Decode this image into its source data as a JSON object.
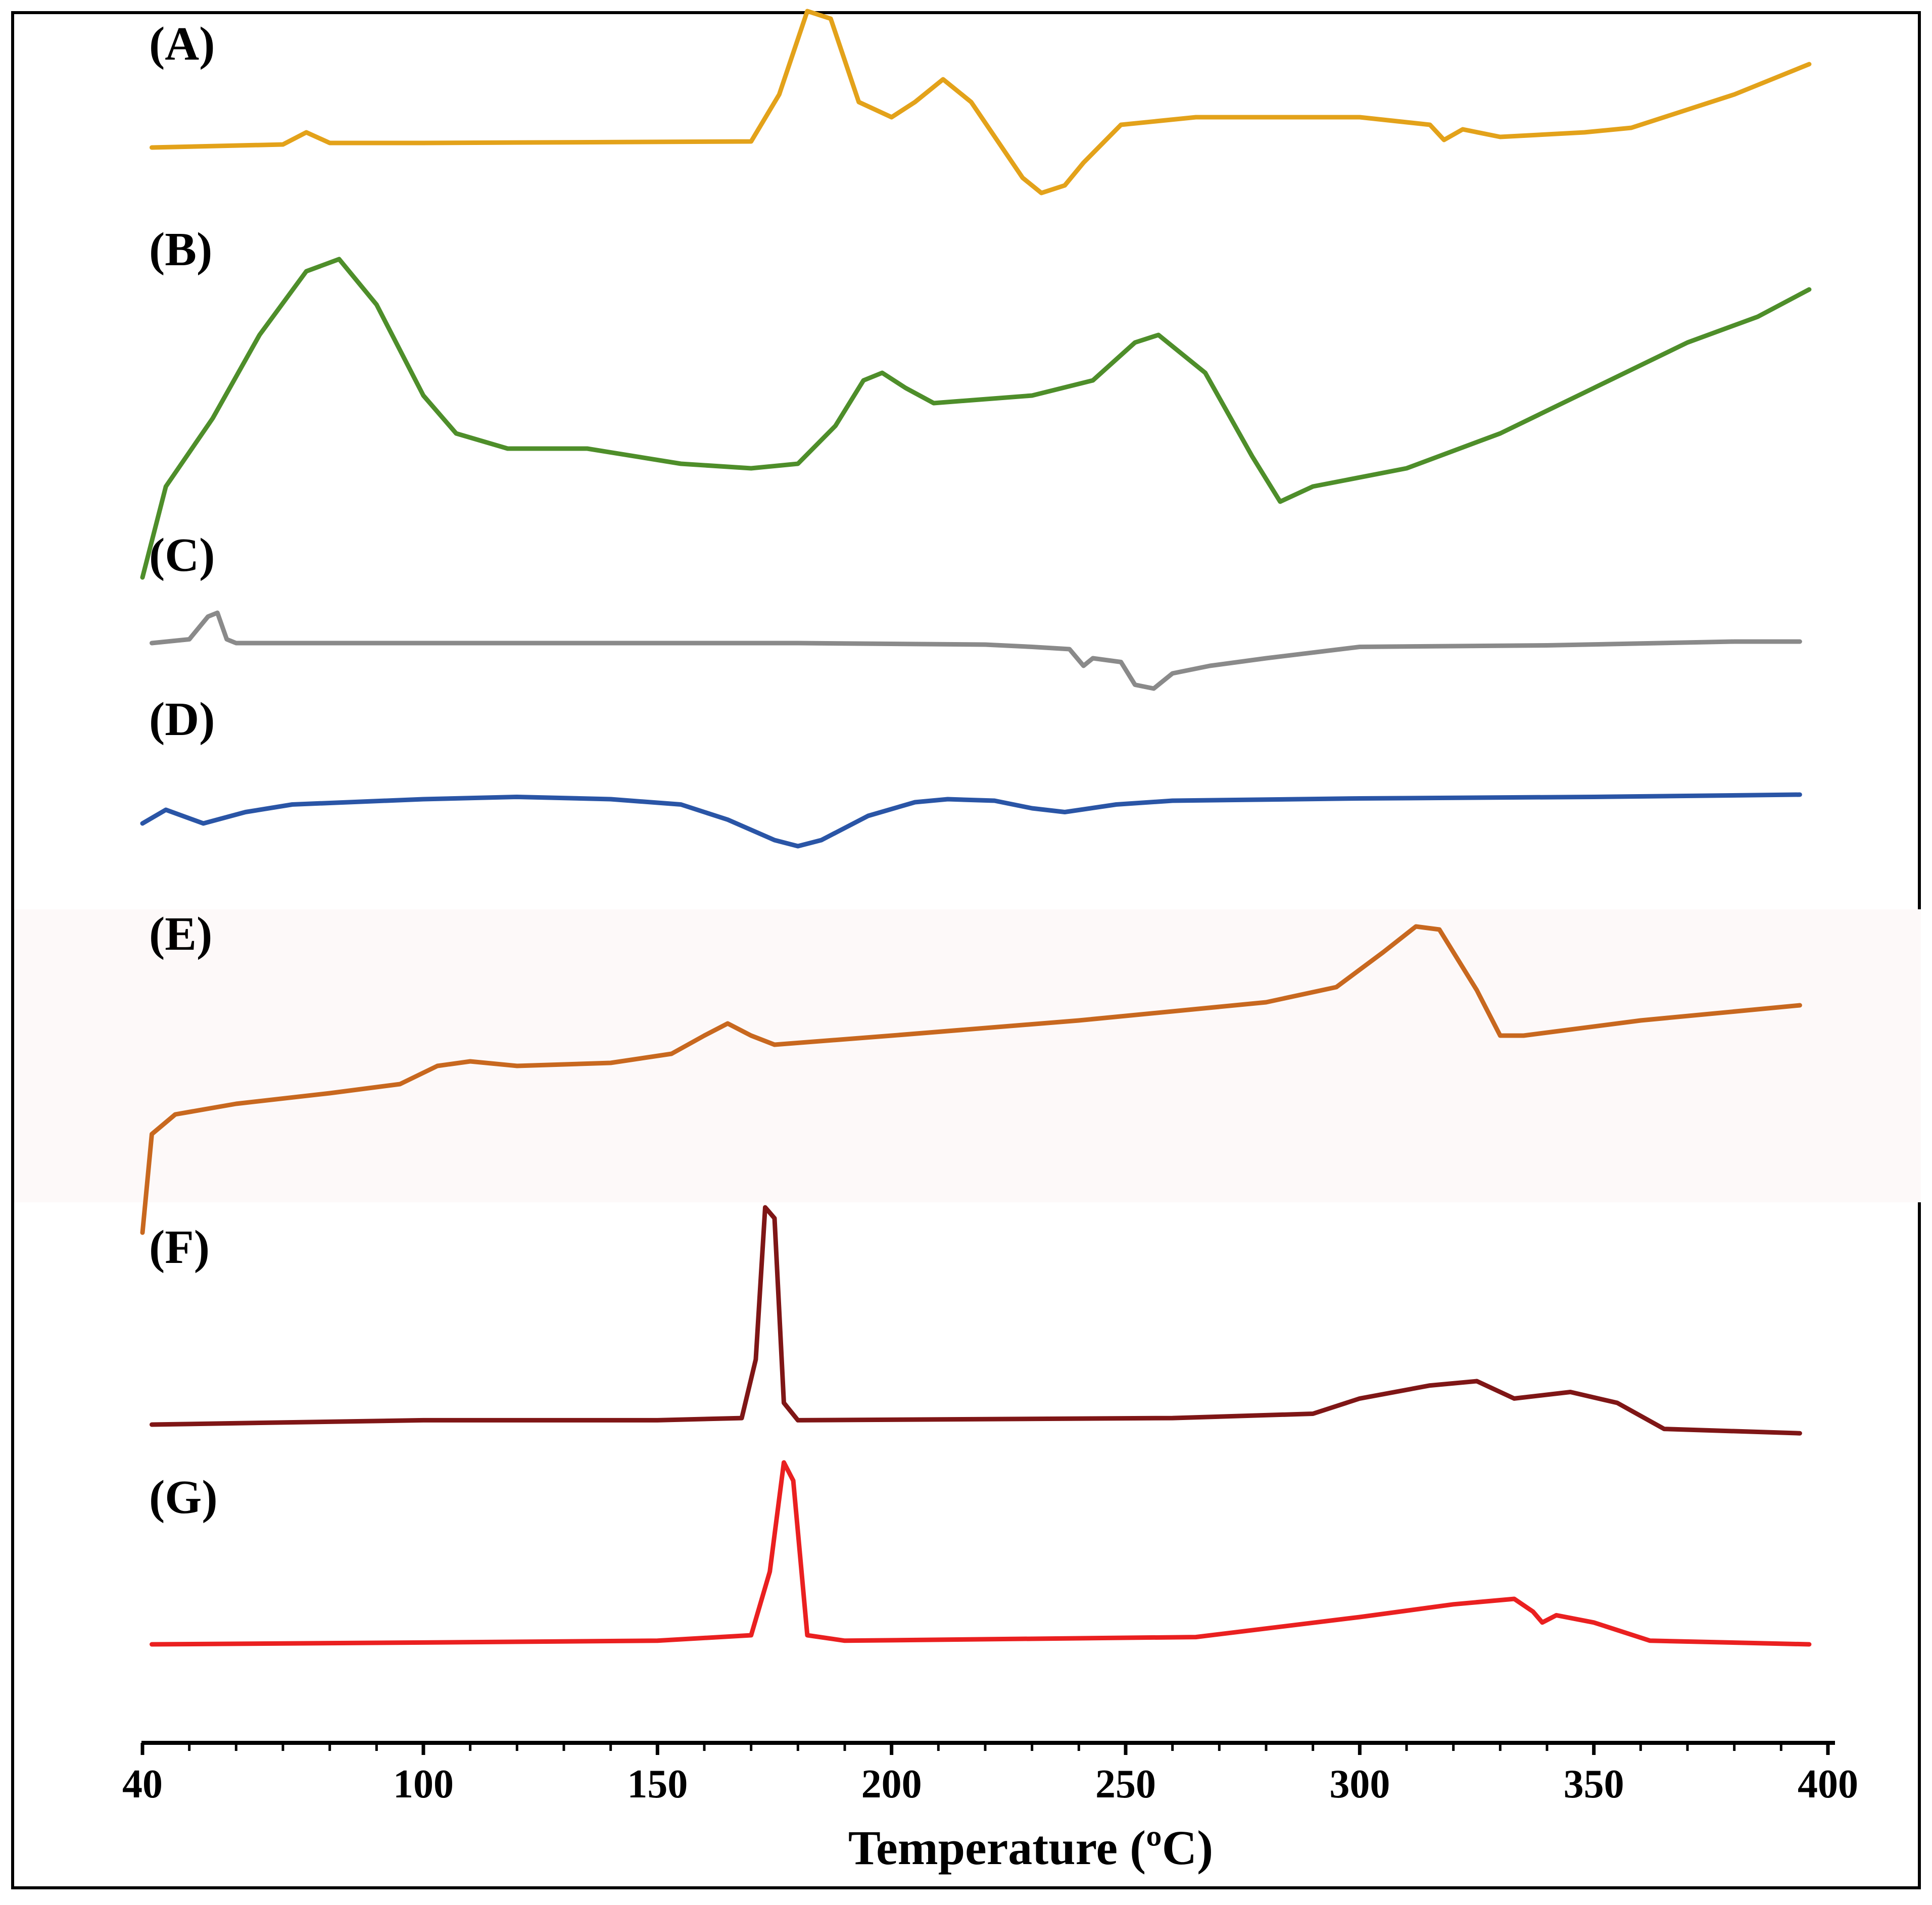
{
  "chart_data": {
    "type": "line",
    "title": "",
    "xlabel": "Temperature (ºC)",
    "ylabel": "",
    "xlim": [
      40,
      400
    ],
    "x_ticks": [
      "40",
      "100",
      "150",
      "200",
      "250",
      "300",
      "350",
      "400"
    ],
    "grid": false,
    "legend": "panel labels at left",
    "series": [
      {
        "name": "(A)",
        "color": "#e3a21a",
        "points": [
          [
            42,
            0
          ],
          [
            70,
            0.02
          ],
          [
            75,
            0.1
          ],
          [
            80,
            0.03
          ],
          [
            100,
            0.03
          ],
          [
            170,
            0.04
          ],
          [
            176,
            0.35
          ],
          [
            182,
            0.9
          ],
          [
            187,
            0.85
          ],
          [
            193,
            0.3
          ],
          [
            200,
            0.2
          ],
          [
            205,
            0.3
          ],
          [
            211,
            0.45
          ],
          [
            217,
            0.3
          ],
          [
            228,
            -0.2
          ],
          [
            232,
            -0.3
          ],
          [
            237,
            -0.25
          ],
          [
            241,
            -0.1
          ],
          [
            249,
            0.15
          ],
          [
            265,
            0.2
          ],
          [
            300,
            0.2
          ],
          [
            315,
            0.15
          ],
          [
            318,
            0.05
          ],
          [
            322,
            0.12
          ],
          [
            330,
            0.07
          ],
          [
            348,
            0.1
          ],
          [
            358,
            0.13
          ],
          [
            380,
            0.35
          ],
          [
            396,
            0.55
          ]
        ]
      },
      {
        "name": "(B)",
        "color": "#4e8e2a",
        "points": [
          [
            40,
            -1.2
          ],
          [
            45,
            -0.6
          ],
          [
            55,
            -0.15
          ],
          [
            65,
            0.4
          ],
          [
            75,
            0.82
          ],
          [
            82,
            0.9
          ],
          [
            90,
            0.6
          ],
          [
            100,
            0.0
          ],
          [
            107,
            -0.25
          ],
          [
            118,
            -0.35
          ],
          [
            135,
            -0.35
          ],
          [
            155,
            -0.45
          ],
          [
            170,
            -0.48
          ],
          [
            180,
            -0.45
          ],
          [
            188,
            -0.2
          ],
          [
            194,
            0.1
          ],
          [
            198,
            0.15
          ],
          [
            203,
            0.05
          ],
          [
            209,
            -0.05
          ],
          [
            230,
            0.0
          ],
          [
            243,
            0.1
          ],
          [
            252,
            0.35
          ],
          [
            257,
            0.4
          ],
          [
            267,
            0.15
          ],
          [
            277,
            -0.4
          ],
          [
            283,
            -0.7
          ],
          [
            290,
            -0.6
          ],
          [
            310,
            -0.48
          ],
          [
            330,
            -0.25
          ],
          [
            350,
            0.05
          ],
          [
            370,
            0.35
          ],
          [
            385,
            0.52
          ],
          [
            396,
            0.7
          ]
        ]
      },
      {
        "name": "(C)",
        "color": "#8a8a8a",
        "points": [
          [
            42,
            0
          ],
          [
            50,
            0.05
          ],
          [
            54,
            0.35
          ],
          [
            56,
            0.4
          ],
          [
            58,
            0.05
          ],
          [
            60,
            0
          ],
          [
            180,
            0
          ],
          [
            220,
            -0.02
          ],
          [
            230,
            -0.05
          ],
          [
            238,
            -0.08
          ],
          [
            241,
            -0.3
          ],
          [
            243,
            -0.2
          ],
          [
            249,
            -0.25
          ],
          [
            252,
            -0.55
          ],
          [
            256,
            -0.6
          ],
          [
            260,
            -0.4
          ],
          [
            268,
            -0.3
          ],
          [
            280,
            -0.2
          ],
          [
            300,
            -0.05
          ],
          [
            340,
            -0.03
          ],
          [
            380,
            0.02
          ],
          [
            394,
            0.02
          ]
        ]
      },
      {
        "name": "(D)",
        "color": "#2a55a6",
        "points": [
          [
            40,
            -0.2
          ],
          [
            45,
            -0.02
          ],
          [
            53,
            -0.2
          ],
          [
            62,
            -0.05
          ],
          [
            72,
            0.05
          ],
          [
            100,
            0.12
          ],
          [
            120,
            0.15
          ],
          [
            140,
            0.12
          ],
          [
            155,
            0.05
          ],
          [
            165,
            -0.15
          ],
          [
            175,
            -0.42
          ],
          [
            180,
            -0.5
          ],
          [
            185,
            -0.42
          ],
          [
            195,
            -0.1
          ],
          [
            205,
            0.08
          ],
          [
            212,
            0.12
          ],
          [
            222,
            0.1
          ],
          [
            230,
            0.0
          ],
          [
            237,
            -0.05
          ],
          [
            248,
            0.05
          ],
          [
            260,
            0.1
          ],
          [
            300,
            0.13
          ],
          [
            350,
            0.15
          ],
          [
            394,
            0.18
          ]
        ]
      },
      {
        "name": "(E)",
        "color": "#c8681f",
        "points": [
          [
            40,
            -1.2
          ],
          [
            42,
            -0.55
          ],
          [
            47,
            -0.42
          ],
          [
            60,
            -0.35
          ],
          [
            80,
            -0.28
          ],
          [
            95,
            -0.22
          ],
          [
            103,
            -0.1
          ],
          [
            110,
            -0.07
          ],
          [
            120,
            -0.1
          ],
          [
            140,
            -0.08
          ],
          [
            153,
            -0.02
          ],
          [
            160,
            0.1
          ],
          [
            165,
            0.18
          ],
          [
            170,
            0.1
          ],
          [
            175,
            0.04
          ],
          [
            200,
            0.1
          ],
          [
            240,
            0.2
          ],
          [
            280,
            0.32
          ],
          [
            295,
            0.42
          ],
          [
            305,
            0.65
          ],
          [
            312,
            0.82
          ],
          [
            317,
            0.8
          ],
          [
            325,
            0.4
          ],
          [
            330,
            0.1
          ],
          [
            335,
            0.1
          ],
          [
            360,
            0.2
          ],
          [
            394,
            0.3
          ]
        ]
      },
      {
        "name": "(F)",
        "color": "#7f1616",
        "points": [
          [
            42,
            0
          ],
          [
            100,
            0.02
          ],
          [
            150,
            0.02
          ],
          [
            168,
            0.03
          ],
          [
            171,
            0.3
          ],
          [
            173,
            1.0
          ],
          [
            175,
            0.95
          ],
          [
            177,
            0.1
          ],
          [
            180,
            0.02
          ],
          [
            260,
            0.03
          ],
          [
            290,
            0.05
          ],
          [
            300,
            0.12
          ],
          [
            315,
            0.18
          ],
          [
            325,
            0.2
          ],
          [
            333,
            0.12
          ],
          [
            345,
            0.15
          ],
          [
            355,
            0.1
          ],
          [
            365,
            -0.02
          ],
          [
            394,
            -0.04
          ]
        ]
      },
      {
        "name": "(G)",
        "color": "#ea2020",
        "points": [
          [
            42,
            0
          ],
          [
            100,
            0.01
          ],
          [
            150,
            0.02
          ],
          [
            170,
            0.05
          ],
          [
            174,
            0.4
          ],
          [
            177,
            1.0
          ],
          [
            179,
            0.9
          ],
          [
            182,
            0.05
          ],
          [
            190,
            0.02
          ],
          [
            265,
            0.04
          ],
          [
            300,
            0.15
          ],
          [
            320,
            0.22
          ],
          [
            333,
            0.25
          ],
          [
            337,
            0.18
          ],
          [
            339,
            0.12
          ],
          [
            342,
            0.16
          ],
          [
            350,
            0.12
          ],
          [
            362,
            0.02
          ],
          [
            396,
            0.0
          ]
        ]
      }
    ]
  }
}
